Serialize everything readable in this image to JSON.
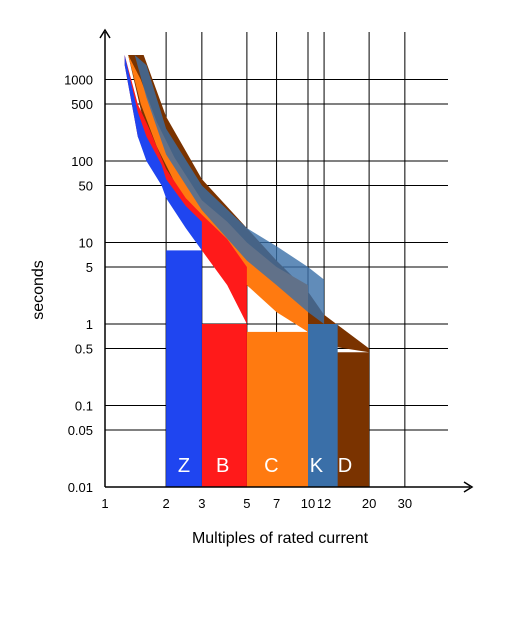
{
  "chart_data": {
    "type": "area",
    "xlabel": "Multiples of rated current",
    "ylabel": "seconds",
    "xscale": "log",
    "yscale": "log",
    "xlim": [
      1,
      40
    ],
    "ylim": [
      0.01,
      3000
    ],
    "grid": true,
    "x_ticks": [
      1,
      2,
      3,
      5,
      7,
      10,
      12,
      20,
      30
    ],
    "x_tick_labels": [
      "1",
      "2",
      "3",
      "5",
      "7",
      "10",
      "12",
      "20",
      "30"
    ],
    "y_ticks": [
      0.01,
      0.05,
      0.1,
      0.5,
      1,
      5,
      10,
      50,
      100,
      500,
      1000
    ],
    "y_tick_labels": [
      "0.01",
      "0.05",
      "0.1",
      "0.5",
      "1",
      "5",
      "10",
      "50",
      "100",
      "500",
      "1000"
    ],
    "series": [
      {
        "name": "Z",
        "color": "#1f45f0",
        "magnetic_trip": [
          2,
          3
        ],
        "thermal_band": {
          "x": [
            1.25,
            1.45,
            1.6,
            1.9,
            2.0,
            2.5,
            3.0
          ],
          "lower": [
            1500,
            200,
            100,
            50,
            35,
            15,
            8
          ],
          "upper": [
            2000,
            400,
            200,
            90,
            60,
            28,
            18
          ]
        }
      },
      {
        "name": "B",
        "color": "#ff1a1a",
        "magnetic_trip": [
          3,
          5
        ],
        "thermal_band": {
          "x": [
            1.25,
            1.45,
            1.65,
            2.0,
            2.5,
            3.0,
            4.0,
            5.0
          ],
          "lower": [
            1500,
            200,
            100,
            45,
            20,
            8,
            3,
            1
          ],
          "upper": [
            2000,
            500,
            250,
            80,
            35,
            22,
            11,
            5
          ]
        }
      },
      {
        "name": "C",
        "color": "#ff7a10",
        "magnetic_trip": [
          5,
          10
        ],
        "thermal_band": {
          "x": [
            1.3,
            1.5,
            1.8,
            2.2,
            3.0,
            4.0,
            5.0,
            7.0,
            10.0
          ],
          "lower": [
            2000,
            500,
            150,
            55,
            12,
            6,
            3,
            1.4,
            0.8
          ],
          "upper": [
            2000,
            1000,
            300,
            110,
            33,
            18,
            10,
            5,
            3
          ]
        }
      },
      {
        "name": "K",
        "color": "#3a6fa8",
        "magnetic_trip": [
          10,
          14
        ],
        "thermal_band": {
          "x": [
            1.4,
            1.6,
            2.0,
            3.0,
            5.0,
            7.0,
            10.0,
            12.0
          ],
          "lower": [
            2000,
            600,
            120,
            25,
            6,
            3,
            1.4,
            1
          ],
          "upper": [
            2000,
            1500,
            250,
            50,
            15,
            9,
            5,
            3.5
          ]
        }
      },
      {
        "name": "D",
        "color": "#7a3300",
        "magnetic_trip": [
          10,
          20
        ],
        "thermal_band": {
          "x": [
            1.3,
            1.55,
            2.0,
            3.0,
            5.0,
            7.0,
            10.0,
            12.0,
            20.0
          ],
          "lower": [
            2000,
            300,
            60,
            10,
            3,
            1.5,
            0.8,
            0.55,
            0.45
          ],
          "upper": [
            2000,
            2000,
            350,
            60,
            15,
            6,
            2.5,
            1.3,
            0.5
          ]
        }
      }
    ]
  }
}
